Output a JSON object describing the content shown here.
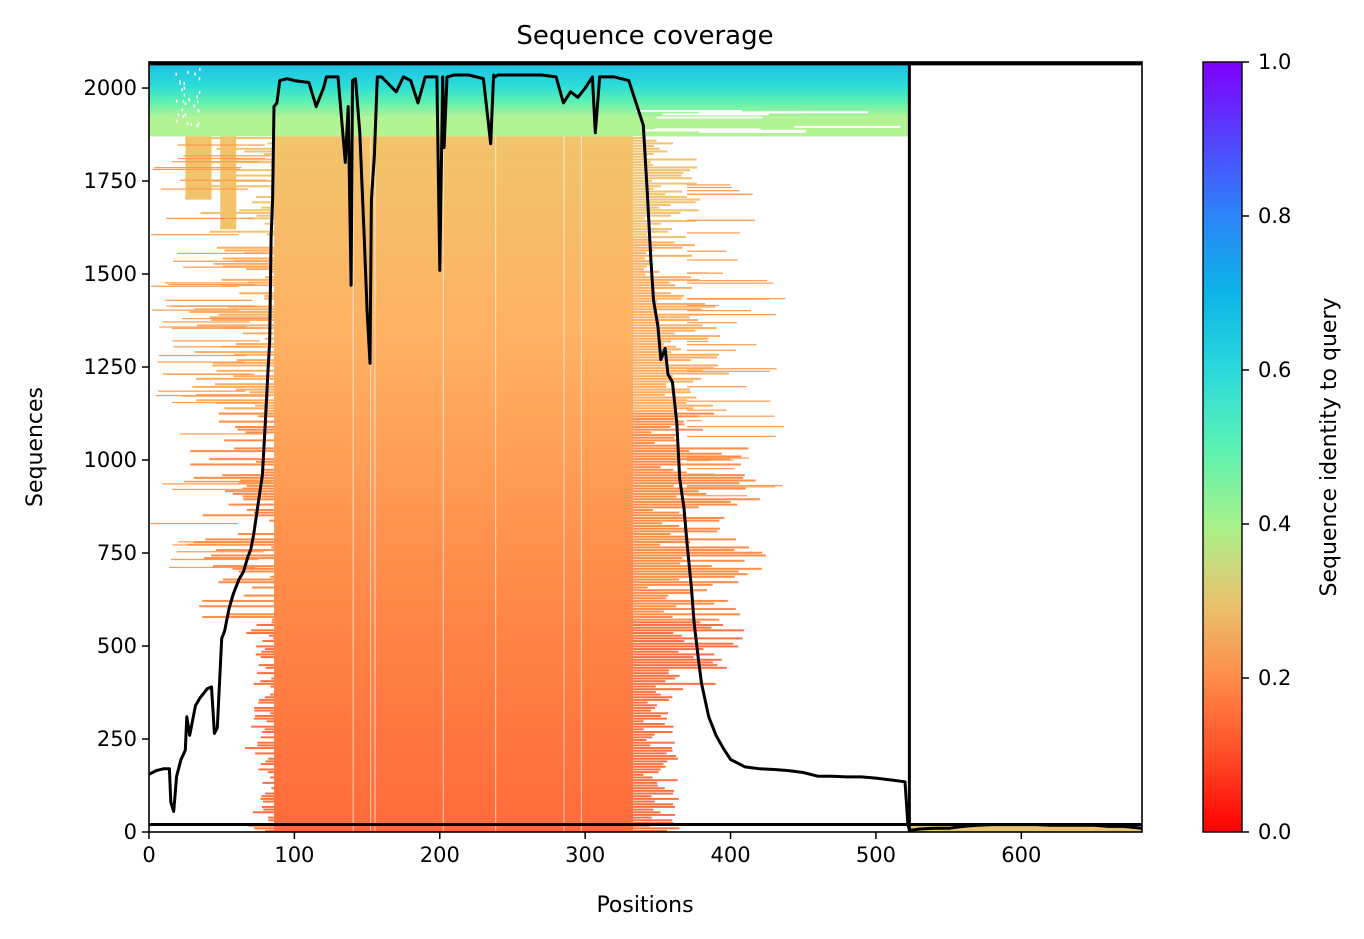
{
  "chart_data": {
    "type": "heatmap",
    "title": "Sequence coverage",
    "xlabel": "Positions",
    "ylabel": "Sequences",
    "xlim": [
      0,
      683
    ],
    "ylim": [
      0,
      2070
    ],
    "x_ticks": [
      0,
      100,
      200,
      300,
      400,
      500,
      600
    ],
    "y_ticks": [
      0,
      250,
      500,
      750,
      1000,
      1250,
      1500,
      1750,
      2000
    ],
    "grid": false,
    "colorbar": {
      "label": "Sequence identity to query",
      "colormap": "rainbow_r",
      "range": [
        0,
        1
      ],
      "ticks": [
        "0.0",
        "0.2",
        "0.4",
        "0.6",
        "0.8",
        "1.0"
      ]
    },
    "colors": {
      "low_identity": "#ff0000",
      "mid_low_identity": "#ff9a4f",
      "mid_identity": "#f2c36a",
      "high_identity": "#2bd9dc",
      "top_identity": "#7f00ff",
      "coverage_line": "#000000"
    },
    "domain_boundaries": {
      "chain_break_position": 523,
      "horizontal_separator_sequences": [
        20,
        2065
      ]
    },
    "heatmap_regions": [
      {
        "identity_band": "low (~0.1-0.25)",
        "positions": [
          82,
          340
        ],
        "sequences": [
          0,
          1870
        ]
      },
      {
        "identity_band": "sparse tail (~0.15-0.3)",
        "positions": [
          0,
          400
        ],
        "sequences": [
          0,
          1870
        ]
      },
      {
        "identity_band": "mid (~0.35-0.45)",
        "positions": [
          0,
          523
        ],
        "sequences": [
          1870,
          1920
        ]
      },
      {
        "identity_band": "high (~0.6-0.7)",
        "positions": [
          0,
          523
        ],
        "sequences": [
          1920,
          2065
        ]
      },
      {
        "identity_band": "low (~0.3)",
        "positions": [
          523,
          683
        ],
        "sequences": [
          0,
          20
        ]
      }
    ],
    "series": [
      {
        "name": "",
        "type": "line",
        "x": [
          0,
          5,
          10,
          14,
          15,
          17,
          19,
          22,
          25,
          26,
          28,
          30,
          32,
          35,
          40,
          43,
          45,
          47,
          50,
          52,
          55,
          58,
          62,
          65,
          68,
          70,
          72,
          75,
          78,
          80,
          82,
          83,
          84,
          85,
          86,
          88,
          90,
          95,
          100,
          110,
          115,
          120,
          122,
          125,
          130,
          135,
          137,
          139,
          140,
          142,
          145,
          148,
          150,
          152,
          153,
          155,
          157,
          160,
          170,
          175,
          180,
          185,
          190,
          198,
          200,
          202,
          203,
          205,
          210,
          220,
          230,
          235,
          237,
          238,
          240,
          250,
          260,
          270,
          280,
          285,
          290,
          295,
          300,
          305,
          307,
          310,
          320,
          330,
          340,
          343,
          345,
          347,
          350,
          352,
          355,
          357,
          360,
          363,
          365,
          368,
          370,
          373,
          375,
          378,
          380,
          385,
          390,
          395,
          400,
          410,
          420,
          430,
          440,
          450,
          460,
          470,
          480,
          490,
          500,
          510,
          520,
          522,
          523,
          525,
          530,
          540,
          550,
          560,
          570,
          580,
          590,
          600,
          610,
          620,
          630,
          640,
          650,
          660,
          670,
          683
        ],
        "y": [
          155,
          165,
          170,
          170,
          80,
          55,
          150,
          195,
          220,
          310,
          260,
          300,
          340,
          360,
          385,
          390,
          265,
          280,
          520,
          540,
          600,
          640,
          680,
          700,
          740,
          760,
          800,
          880,
          960,
          1100,
          1250,
          1320,
          1600,
          1700,
          1950,
          1960,
          2020,
          2025,
          2020,
          2015,
          1950,
          2000,
          2030,
          2030,
          2030,
          1800,
          1950,
          1470,
          2020,
          2025,
          1880,
          1600,
          1400,
          1260,
          1700,
          1820,
          2030,
          2030,
          1990,
          2030,
          2020,
          1960,
          2030,
          2030,
          1510,
          2030,
          1840,
          2030,
          2035,
          2035,
          2025,
          1850,
          2035,
          2030,
          2035,
          2035,
          2035,
          2035,
          2030,
          1960,
          1990,
          1975,
          2000,
          2030,
          1880,
          2030,
          2030,
          2020,
          1900,
          1700,
          1550,
          1430,
          1360,
          1270,
          1300,
          1230,
          1210,
          1100,
          950,
          870,
          780,
          660,
          560,
          460,
          400,
          310,
          260,
          225,
          195,
          175,
          170,
          168,
          165,
          160,
          150,
          150,
          148,
          148,
          145,
          140,
          135,
          20,
          5,
          5,
          8,
          10,
          10,
          15,
          18,
          20,
          20,
          20,
          20,
          18,
          18,
          18,
          18,
          15,
          15,
          10
        ]
      }
    ]
  }
}
